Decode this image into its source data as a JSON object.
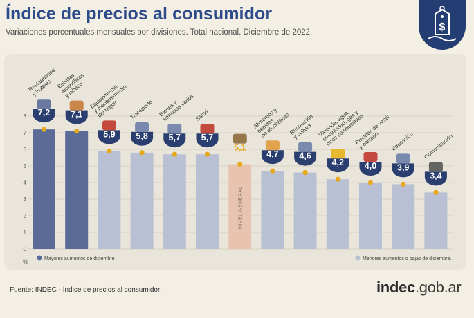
{
  "header": {
    "title": "Índice de precios al consumidor",
    "subtitle": "Variaciones porcentuales mensuales por divisiones. Total nacional. Diciembre de 2022."
  },
  "footer": {
    "source": "Fuente: INDEC - Índice de precios al consumidor",
    "logo_brand": "indec",
    "logo_domain": ".gob.ar"
  },
  "colors": {
    "highlight": "#5a6b98",
    "normal": "#b9c0d3",
    "general": "#e8c4b0",
    "title": "#2d4a8a",
    "badge": "#243d73",
    "dot": "#e7a91c"
  },
  "chart_data": {
    "type": "bar",
    "ylabel": "%",
    "ylim": [
      0,
      8
    ],
    "yticks": [
      "0",
      "1",
      "2",
      "3",
      "4",
      "5",
      "6",
      "7",
      "8"
    ],
    "grid": true,
    "categories": [
      "Restaurantes y hoteles",
      "Bebidas alcohólicas y tabaco",
      "Equipamiento y mantenimiento del hogar",
      "Transporte",
      "Bienes y servicios varios",
      "Salud",
      "Nivel general",
      "Alimentos y bebidas no alcohólicas",
      "Recreación y cultura",
      "Vivienda, agua, electricidad, gas y otros combustibles",
      "Prendas de vestir y calzado",
      "Educación",
      "Comunicación"
    ],
    "labels": [
      [
        "Restaurantes",
        "y hoteles"
      ],
      [
        "Bebidas",
        "alcohólicas",
        "y tabaco"
      ],
      [
        "Equipamiento",
        "y mantenimiento",
        "del hogar"
      ],
      [
        "Transporte"
      ],
      [
        "Bienes y",
        "servicios varios"
      ],
      [
        "Salud"
      ],
      [],
      [
        "Alimentos y",
        "bebidas",
        "no alcohólicas"
      ],
      [
        "Recreación",
        "y cultura"
      ],
      [
        "Vivienda, agua,",
        "electricidad, gas y",
        "otros combustibles"
      ],
      [
        "Prendas de vestir",
        "y calzado"
      ],
      [
        "Educación"
      ],
      [
        "Comunicación"
      ]
    ],
    "values": [
      7.2,
      7.1,
      5.9,
      5.8,
      5.7,
      5.7,
      5.1,
      4.7,
      4.6,
      4.2,
      4.0,
      3.9,
      3.4
    ],
    "value_labels": [
      "7,2",
      "7,1",
      "5,9",
      "5,8",
      "5,7",
      "5,7",
      "5,1",
      "4,7",
      "4,6",
      "4,2",
      "4,0",
      "3,9",
      "3,4"
    ],
    "groups": [
      "highlight",
      "highlight",
      "normal",
      "normal",
      "normal",
      "normal",
      "general",
      "normal",
      "normal",
      "normal",
      "normal",
      "normal",
      "normal"
    ],
    "icons": [
      "cutlery-icon",
      "bottle-icon",
      "washing-machine-icon",
      "bus-icon",
      "comb-icon",
      "cross-icon",
      "basket-icon",
      "bread-icon",
      "ball-icon",
      "bulb-icon",
      "shirt-icon",
      "book-icon",
      "phone-icon"
    ],
    "general_bar_label": "NIVEL GENERAL",
    "legend": [
      {
        "name": "Mayores aumentos de diciembre",
        "group": "highlight",
        "position": "bottom-left"
      },
      {
        "name": "Menores aumentos o bajas de diciembre.",
        "group": "normal",
        "position": "bottom-right"
      }
    ]
  }
}
